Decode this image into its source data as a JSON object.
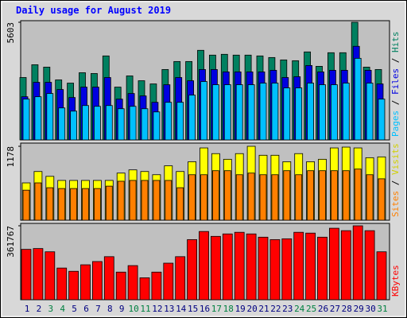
{
  "title": "Daily usage for August 2019",
  "legend_separator": " / ",
  "chart_data": [
    {
      "type": "bar",
      "ylim": [
        0,
        5603
      ],
      "yticks": [
        5603
      ],
      "series": [
        {
          "name": "Hits",
          "color": "#008060",
          "values": [
            2972,
            3581,
            3467,
            2858,
            2705,
            3200,
            3162,
            4000,
            2515,
            3048,
            2819,
            2667,
            3353,
            3734,
            3734,
            4267,
            4039,
            4077,
            4039,
            4039,
            4000,
            3924,
            3810,
            3772,
            4191,
            3505,
            4153,
            4153,
            5603,
            3467,
            3353
          ]
        },
        {
          "name": "Files",
          "color": "#0000e0",
          "values": [
            2057,
            2743,
            2743,
            2400,
            2019,
            2515,
            2515,
            2972,
            1943,
            2210,
            2096,
            1791,
            2629,
            2972,
            2819,
            3353,
            3353,
            3239,
            3239,
            3239,
            3239,
            3315,
            2972,
            3010,
            3543,
            3239,
            3315,
            3315,
            4458,
            3315,
            2667
          ]
        },
        {
          "name": "Pages",
          "color": "#00c0ff",
          "values": [
            1943,
            2057,
            2210,
            1524,
            1372,
            1638,
            1600,
            1638,
            1486,
            1600,
            1486,
            1334,
            1791,
            1791,
            2134,
            2781,
            2629,
            2629,
            2629,
            2629,
            2705,
            2705,
            2477,
            2477,
            2705,
            2629,
            2629,
            2705,
            3886,
            2705,
            1943
          ]
        }
      ]
    },
    {
      "type": "bar",
      "ylim": [
        0,
        1178
      ],
      "yticks": [
        1178
      ],
      "series": [
        {
          "name": "Visits",
          "color": "#ffff00",
          "values": [
            595,
            776,
            699,
            634,
            634,
            634,
            634,
            634,
            751,
            802,
            776,
            725,
            867,
            776,
            932,
            1152,
            1061,
            971,
            1061,
            1178,
            1035,
            1035,
            932,
            1061,
            932,
            971,
            1152,
            1165,
            1152,
            996,
            1009
          ]
        },
        {
          "name": "Sites",
          "color": "#ff8000",
          "values": [
            479,
            595,
            518,
            505,
            505,
            505,
            505,
            543,
            621,
            634,
            634,
            634,
            634,
            518,
            725,
            725,
            789,
            789,
            725,
            751,
            725,
            725,
            789,
            725,
            789,
            789,
            789,
            789,
            815,
            725,
            660
          ]
        }
      ]
    },
    {
      "type": "bar",
      "ylim": [
        0,
        361767
      ],
      "yticks": [
        361767
      ],
      "categories": [
        "1",
        "2",
        "3",
        "4",
        "5",
        "6",
        "7",
        "8",
        "9",
        "10",
        "11",
        "12",
        "13",
        "14",
        "15",
        "16",
        "17",
        "18",
        "19",
        "20",
        "21",
        "22",
        "23",
        "24",
        "25",
        "26",
        "27",
        "28",
        "29",
        "30",
        "31"
      ],
      "category_colors": [
        "#000080",
        "#000080",
        "#008040",
        "#008040",
        "#000080",
        "#000080",
        "#000080",
        "#000080",
        "#000080",
        "#008040",
        "#008040",
        "#000080",
        "#000080",
        "#000080",
        "#000080",
        "#000080",
        "#008040",
        "#008040",
        "#000080",
        "#000080",
        "#000080",
        "#000080",
        "#000080",
        "#008040",
        "#008040",
        "#000080",
        "#000080",
        "#000080",
        "#000080",
        "#000080",
        "#008040"
      ],
      "series": [
        {
          "name": "KBytes",
          "color": "#ff0000",
          "values": [
            246450,
            250425,
            234525,
            155025,
            139125,
            170925,
            186825,
            210675,
            135150,
            166950,
            107325,
            135150,
            178875,
            210675,
            294150,
            333900,
            310050,
            321975,
            329925,
            321975,
            306075,
            294150,
            298125,
            329925,
            325950,
            306075,
            349800,
            337875,
            361767,
            337875,
            234525
          ]
        }
      ]
    }
  ]
}
